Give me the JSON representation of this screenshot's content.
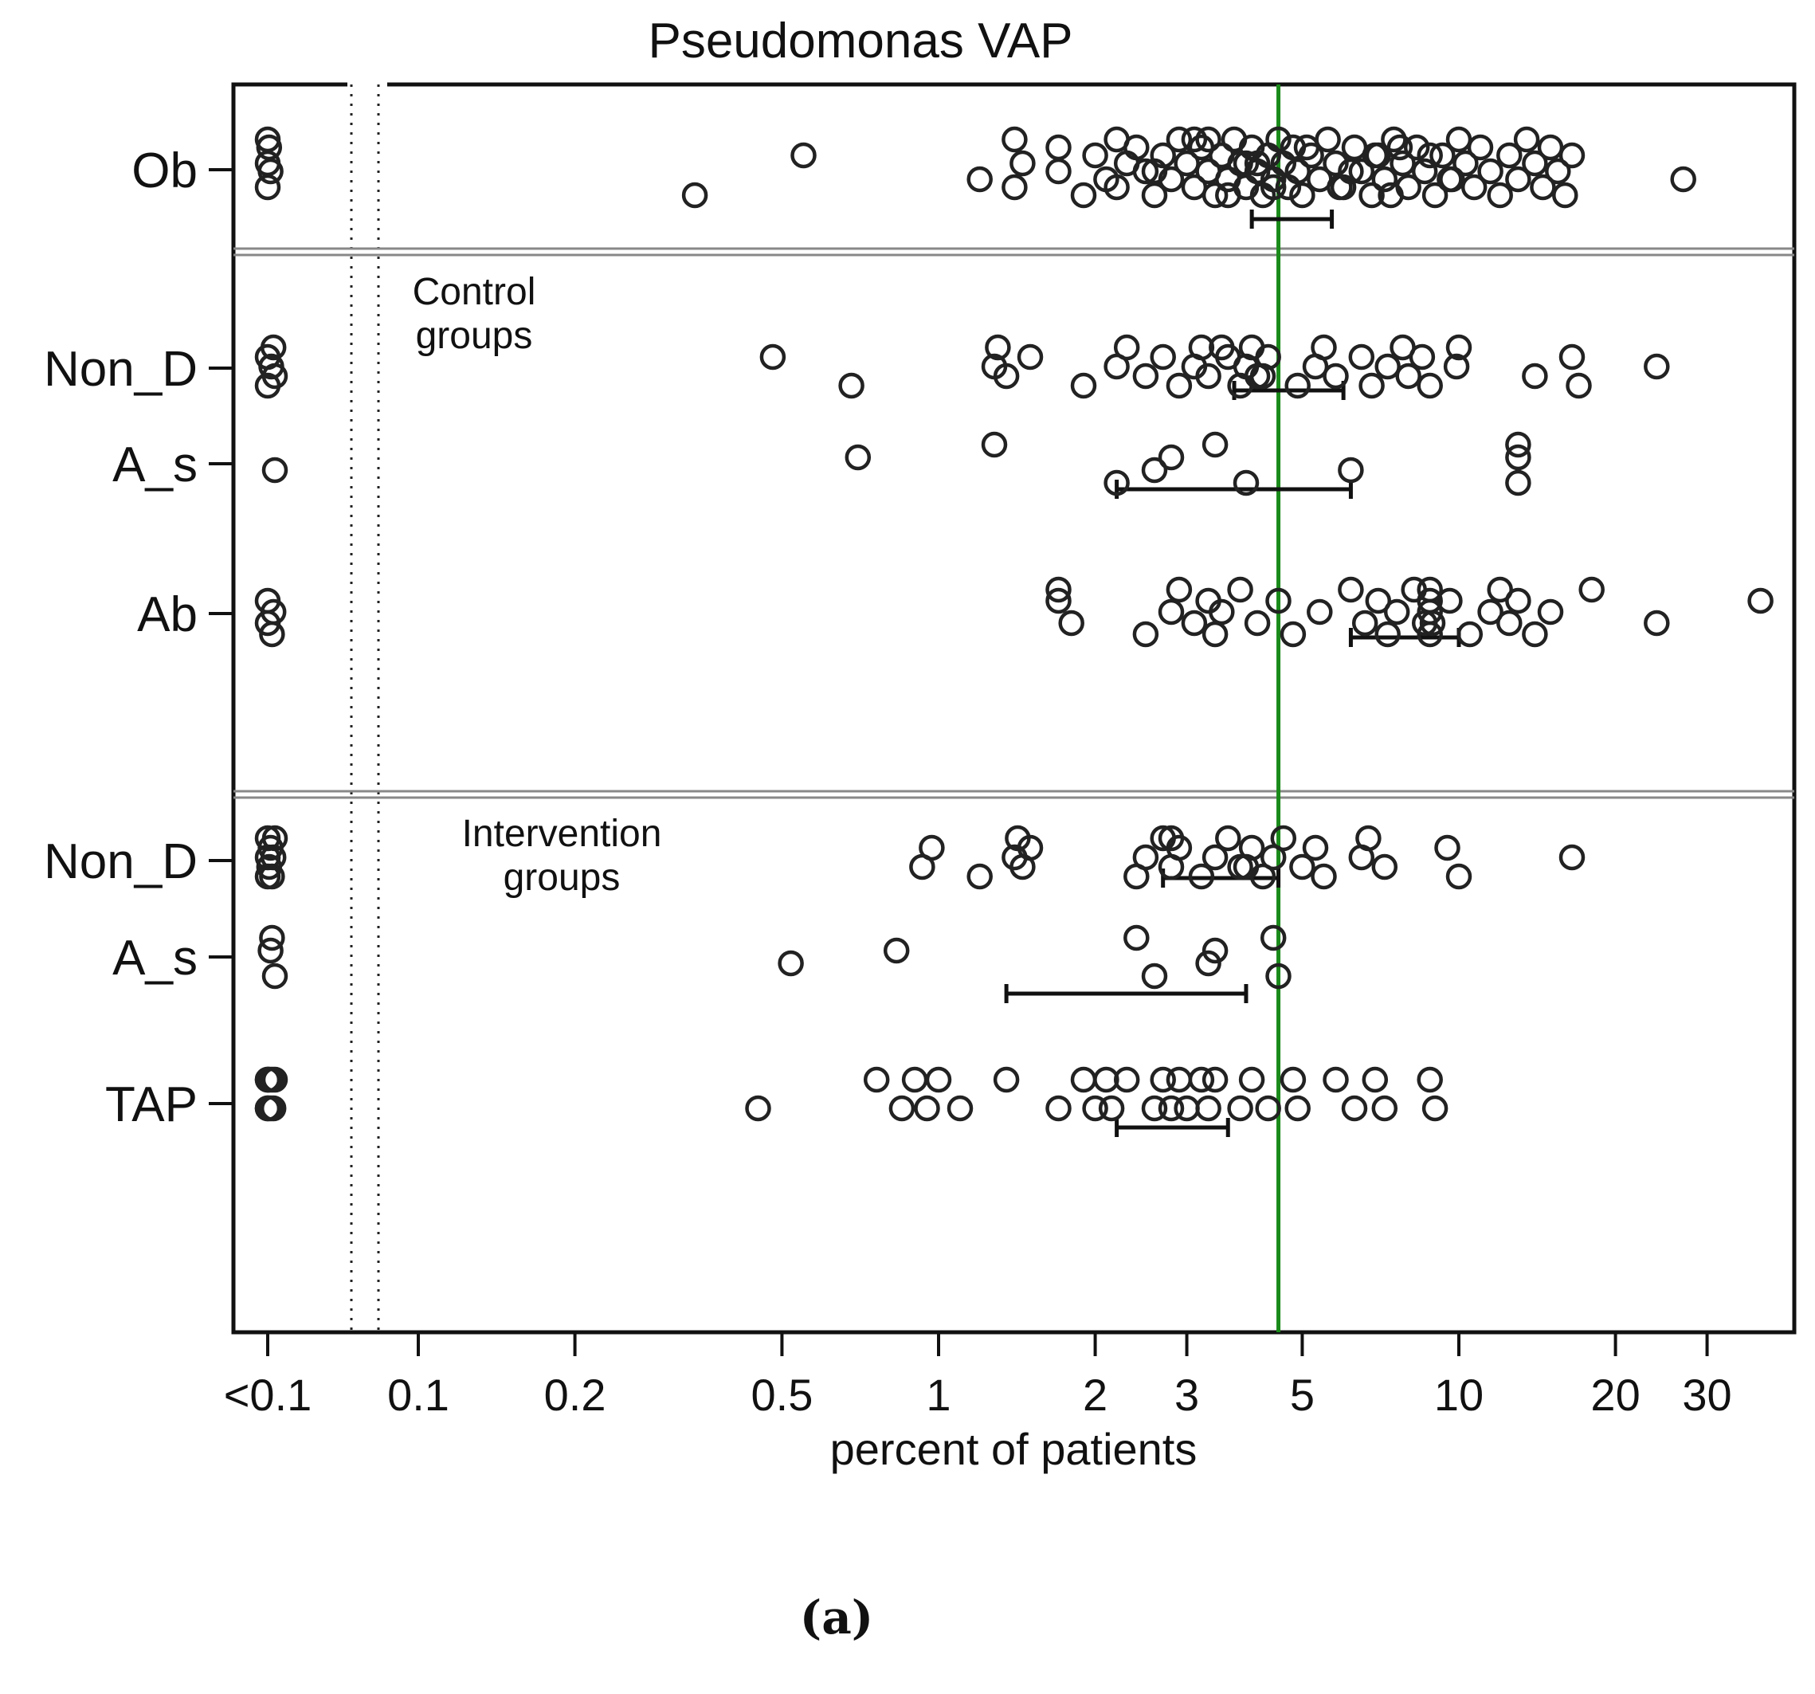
{
  "chart_data": {
    "type": "scatter",
    "title": "Pseudomonas VAP",
    "xlabel": "percent of patients",
    "ylabel": "",
    "x_scale": "log",
    "xlim": [
      0.045,
      38
    ],
    "x_ticks": [
      {
        "label": "<0.1",
        "value": 0.05
      },
      {
        "label": "0.1",
        "value": 0.1
      },
      {
        "label": "0.2",
        "value": 0.2
      },
      {
        "label": "0.5",
        "value": 0.5
      },
      {
        "label": "1",
        "value": 1
      },
      {
        "label": "2",
        "value": 2
      },
      {
        "label": "3",
        "value": 3
      },
      {
        "label": "5",
        "value": 5
      },
      {
        "label": "10",
        "value": 10
      },
      {
        "label": "20",
        "value": 20
      },
      {
        "label": "30",
        "value": 30
      }
    ],
    "reference_line": {
      "value": 4.5,
      "color": "#1a8a1a"
    },
    "group_labels": [
      {
        "text": [
          "Control",
          "groups"
        ],
        "after_row": 0
      },
      {
        "text": [
          "Intervention",
          "groups"
        ],
        "after_row": 3
      }
    ],
    "caption": "(a)",
    "rows": [
      {
        "name": "Ob",
        "ci": [
          4.0,
          5.7
        ],
        "points": [
          0.05,
          0.05,
          0.05,
          0.052,
          0.054,
          0.34,
          0.55,
          1.2,
          1.4,
          1.45,
          1.4,
          1.7,
          1.7,
          1.9,
          2.0,
          2.1,
          2.2,
          2.3,
          2.2,
          2.4,
          2.5,
          2.6,
          2.7,
          2.8,
          2.9,
          3.0,
          3.1,
          3.2,
          3.3,
          3.4,
          3.5,
          3.6,
          3.7,
          3.8,
          3.9,
          4.0,
          4.1,
          4.2,
          4.3,
          4.4,
          4.5,
          4.6,
          4.7,
          4.8,
          4.9,
          5.0,
          5.2,
          5.4,
          5.6,
          5.8,
          6.0,
          6.3,
          6.5,
          6.8,
          7.0,
          7.2,
          7.5,
          7.8,
          8.0,
          8.3,
          8.6,
          9.0,
          9.3,
          9.7,
          10.0,
          10.3,
          10.7,
          11.0,
          11.5,
          12.0,
          12.5,
          13.0,
          13.5,
          14.0,
          14.5,
          15.0,
          15.5,
          16.0,
          16.5,
          27.0,
          3.1,
          3.9,
          4.4,
          5.1,
          6.2,
          7.4,
          8.8,
          9.6,
          3.3,
          4.1,
          5.9,
          7.7,
          2.6,
          3.6,
          6.9
        ]
      },
      {
        "name": "Non_D",
        "ci": [
          3.7,
          6.0
        ],
        "points": [
          0.05,
          0.05,
          0.055,
          0.058,
          0.06,
          0.48,
          0.68,
          1.28,
          1.3,
          1.35,
          1.5,
          1.9,
          2.2,
          2.3,
          2.5,
          2.7,
          2.9,
          3.1,
          3.2,
          3.3,
          3.6,
          3.8,
          3.9,
          4.0,
          4.2,
          4.3,
          4.9,
          5.3,
          5.5,
          5.8,
          6.5,
          6.8,
          7.3,
          7.8,
          8.0,
          8.5,
          8.8,
          9.9,
          10.0,
          14.0,
          16.5,
          17.0,
          24.0,
          3.5,
          4.1
        ]
      },
      {
        "name": "A_s",
        "ci": [
          2.2,
          6.2
        ],
        "points": [
          0.06,
          0.7,
          1.28,
          2.2,
          2.6,
          2.8,
          3.4,
          3.9,
          6.2,
          13.0,
          13.0,
          13.0
        ]
      },
      {
        "name": "Ab",
        "ci": [
          6.2,
          10.0
        ],
        "points": [
          0.05,
          0.05,
          0.056,
          0.058,
          1.7,
          1.8,
          1.7,
          2.5,
          2.8,
          2.9,
          3.1,
          3.3,
          3.4,
          3.5,
          3.8,
          4.1,
          4.5,
          4.8,
          5.4,
          6.2,
          6.6,
          7.0,
          7.3,
          7.6,
          8.2,
          8.6,
          8.8,
          8.8,
          8.8,
          8.8,
          8.9,
          9.6,
          10.5,
          11.5,
          12.0,
          12.5,
          13.0,
          14.0,
          15.0,
          18.0,
          24.0,
          38.0
        ]
      },
      {
        "name": "Non_D",
        "ci": [
          2.7,
          4.5
        ],
        "points": [
          0.05,
          0.05,
          0.05,
          0.052,
          0.054,
          0.056,
          0.058,
          0.06,
          0.93,
          0.97,
          1.2,
          1.4,
          1.42,
          1.45,
          1.5,
          2.4,
          2.5,
          2.7,
          2.8,
          2.9,
          3.2,
          3.4,
          3.6,
          3.8,
          4.0,
          4.2,
          4.4,
          4.6,
          5.0,
          5.3,
          5.5,
          6.5,
          6.7,
          7.2,
          9.5,
          10.0,
          16.5,
          2.8,
          3.9
        ]
      },
      {
        "name": "A_s",
        "ci": [
          1.35,
          3.9
        ],
        "points": [
          0.054,
          0.056,
          0.06,
          0.52,
          0.83,
          2.4,
          2.6,
          3.3,
          3.4,
          4.4,
          4.5
        ]
      },
      {
        "name": "TAP",
        "ci": [
          2.2,
          3.6
        ],
        "points": [
          0.05,
          0.05,
          0.05,
          0.05,
          0.052,
          0.054,
          0.056,
          0.058,
          0.06,
          0.45,
          0.76,
          0.85,
          0.9,
          0.95,
          1.0,
          1.1,
          1.35,
          1.7,
          1.9,
          2.0,
          2.1,
          2.15,
          2.3,
          2.6,
          2.7,
          2.8,
          2.9,
          3.0,
          3.2,
          3.3,
          3.4,
          3.8,
          4.0,
          4.3,
          4.8,
          4.9,
          5.8,
          6.3,
          6.9,
          7.2,
          8.8,
          9.0
        ]
      }
    ]
  }
}
